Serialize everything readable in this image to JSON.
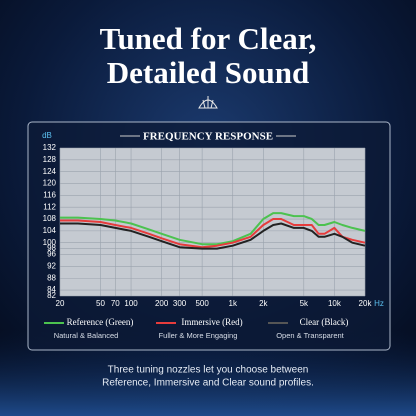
{
  "header": {
    "title_lines": [
      "Tuned for Clear,",
      "Detailed Sound"
    ]
  },
  "chart_data": {
    "type": "line",
    "title": "FREQUENCY RESPONSE",
    "y_label": "dB",
    "x_label": "Hz",
    "xscale": "log",
    "grid": true,
    "x": [
      20,
      30,
      50,
      70,
      100,
      150,
      200,
      300,
      500,
      700,
      1000,
      1500,
      2000,
      2500,
      3000,
      4000,
      5000,
      6000,
      7000,
      8000,
      10000,
      12000,
      15000,
      20000
    ],
    "series": [
      {
        "name": "Reference (Green)",
        "description": "Natural & Balanced",
        "color": "#4cc24f",
        "values": [
          108.5,
          108.5,
          108,
          107.5,
          106.5,
          104.5,
          103,
          101,
          99.5,
          99.5,
          100.5,
          103,
          108,
          110,
          110,
          109,
          109,
          108,
          106,
          106,
          107,
          106,
          105,
          104
        ]
      },
      {
        "name": "Immersive (Red)",
        "description": "Fuller & More Engaging",
        "color": "#e63c3c",
        "values": [
          107.5,
          107.5,
          107,
          106,
          105,
          103,
          101.5,
          99.5,
          98.5,
          99,
          100,
          102,
          106,
          108,
          108,
          106,
          106,
          106,
          103,
          103,
          105,
          102,
          101,
          100
        ]
      },
      {
        "name": "Clear (Black)",
        "description": "Open & Transparent",
        "color": "#222222",
        "values": [
          106.5,
          106.5,
          106,
          105,
          104,
          102,
          100.5,
          98.5,
          98,
          98,
          99,
          101,
          104,
          106,
          106.5,
          105,
          105,
          104,
          102,
          102,
          103,
          102,
          100,
          99
        ]
      }
    ],
    "xlim": [
      20,
      20000
    ],
    "xticks": [
      20,
      50,
      70,
      100,
      200,
      300,
      500,
      {
        "value": 1000,
        "label": "1k"
      },
      {
        "value": 2000,
        "label": "2k"
      },
      {
        "value": 5000,
        "label": "5k"
      },
      {
        "value": 10000,
        "label": "10k"
      },
      {
        "value": 20000,
        "label": "20k"
      }
    ],
    "ylim": [
      82,
      132
    ],
    "yticks": [
      82,
      84,
      88,
      92,
      96,
      98,
      100,
      104,
      108,
      112,
      116,
      120,
      124,
      128,
      132
    ]
  },
  "caption": {
    "lines": [
      "Three tuning nozzles let you choose between",
      "Reference, Immersive and Clear sound profiles."
    ]
  }
}
